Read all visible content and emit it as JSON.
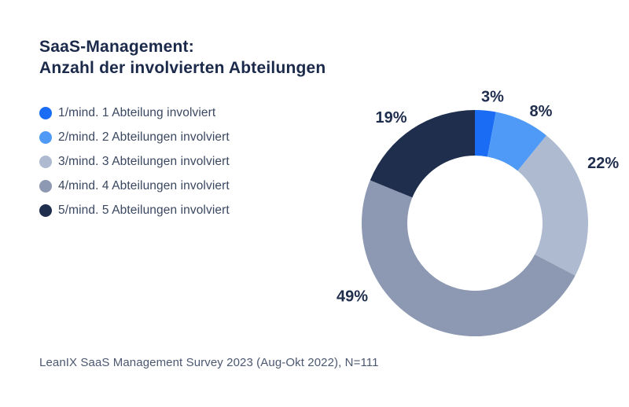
{
  "title": {
    "line1": "SaaS-Management:",
    "line2": "Anzahl der involvierten Abteilungen"
  },
  "legend": {
    "items": [
      {
        "label": "1/mind. 1 Abteilung involviert",
        "color": "#1b6cf5"
      },
      {
        "label": "2/mind. 2 Abteilungen involviert",
        "color": "#4f9af7"
      },
      {
        "label": "3/mind. 3 Abteilungen involviert",
        "color": "#adbacf"
      },
      {
        "label": "4/mind. 4 Abteilungen involviert",
        "color": "#8d99b2"
      },
      {
        "label": "5/mind. 5 Abteilungen involviert",
        "color": "#202e4e"
      }
    ]
  },
  "footer": {
    "text": "LeanIX SaaS Management Survey 2023 (Aug-Okt 2022), N=111"
  },
  "colors": {
    "background": "#ffffff",
    "title_text": "#1b2a4a",
    "legend_text": "#3a4760",
    "footer_text": "#4c5870",
    "percent_label": "#202e4e"
  },
  "chart_data": {
    "type": "pie",
    "subtype": "donut",
    "title": "SaaS-Management: Anzahl der involvierten Abteilungen",
    "categories": [
      "1/mind. 1 Abteilung involviert",
      "2/mind. 2 Abteilungen involviert",
      "3/mind. 3 Abteilungen involviert",
      "4/mind. 4 Abteilungen involviert",
      "5/mind. 5 Abteilungen involviert"
    ],
    "values": [
      3,
      8,
      22,
      49,
      19
    ],
    "labels": [
      "3%",
      "8%",
      "22%",
      "49%",
      "19%"
    ],
    "colors": [
      "#1b6cf5",
      "#4f9af7",
      "#adbacf",
      "#8d99b2",
      "#202e4e"
    ],
    "start_angle_deg": 0,
    "direction": "clockwise",
    "inner_radius_ratio": 0.6,
    "legend_position": "left",
    "source_note": "LeanIX SaaS Management Survey 2023 (Aug-Okt 2022), N=111"
  }
}
